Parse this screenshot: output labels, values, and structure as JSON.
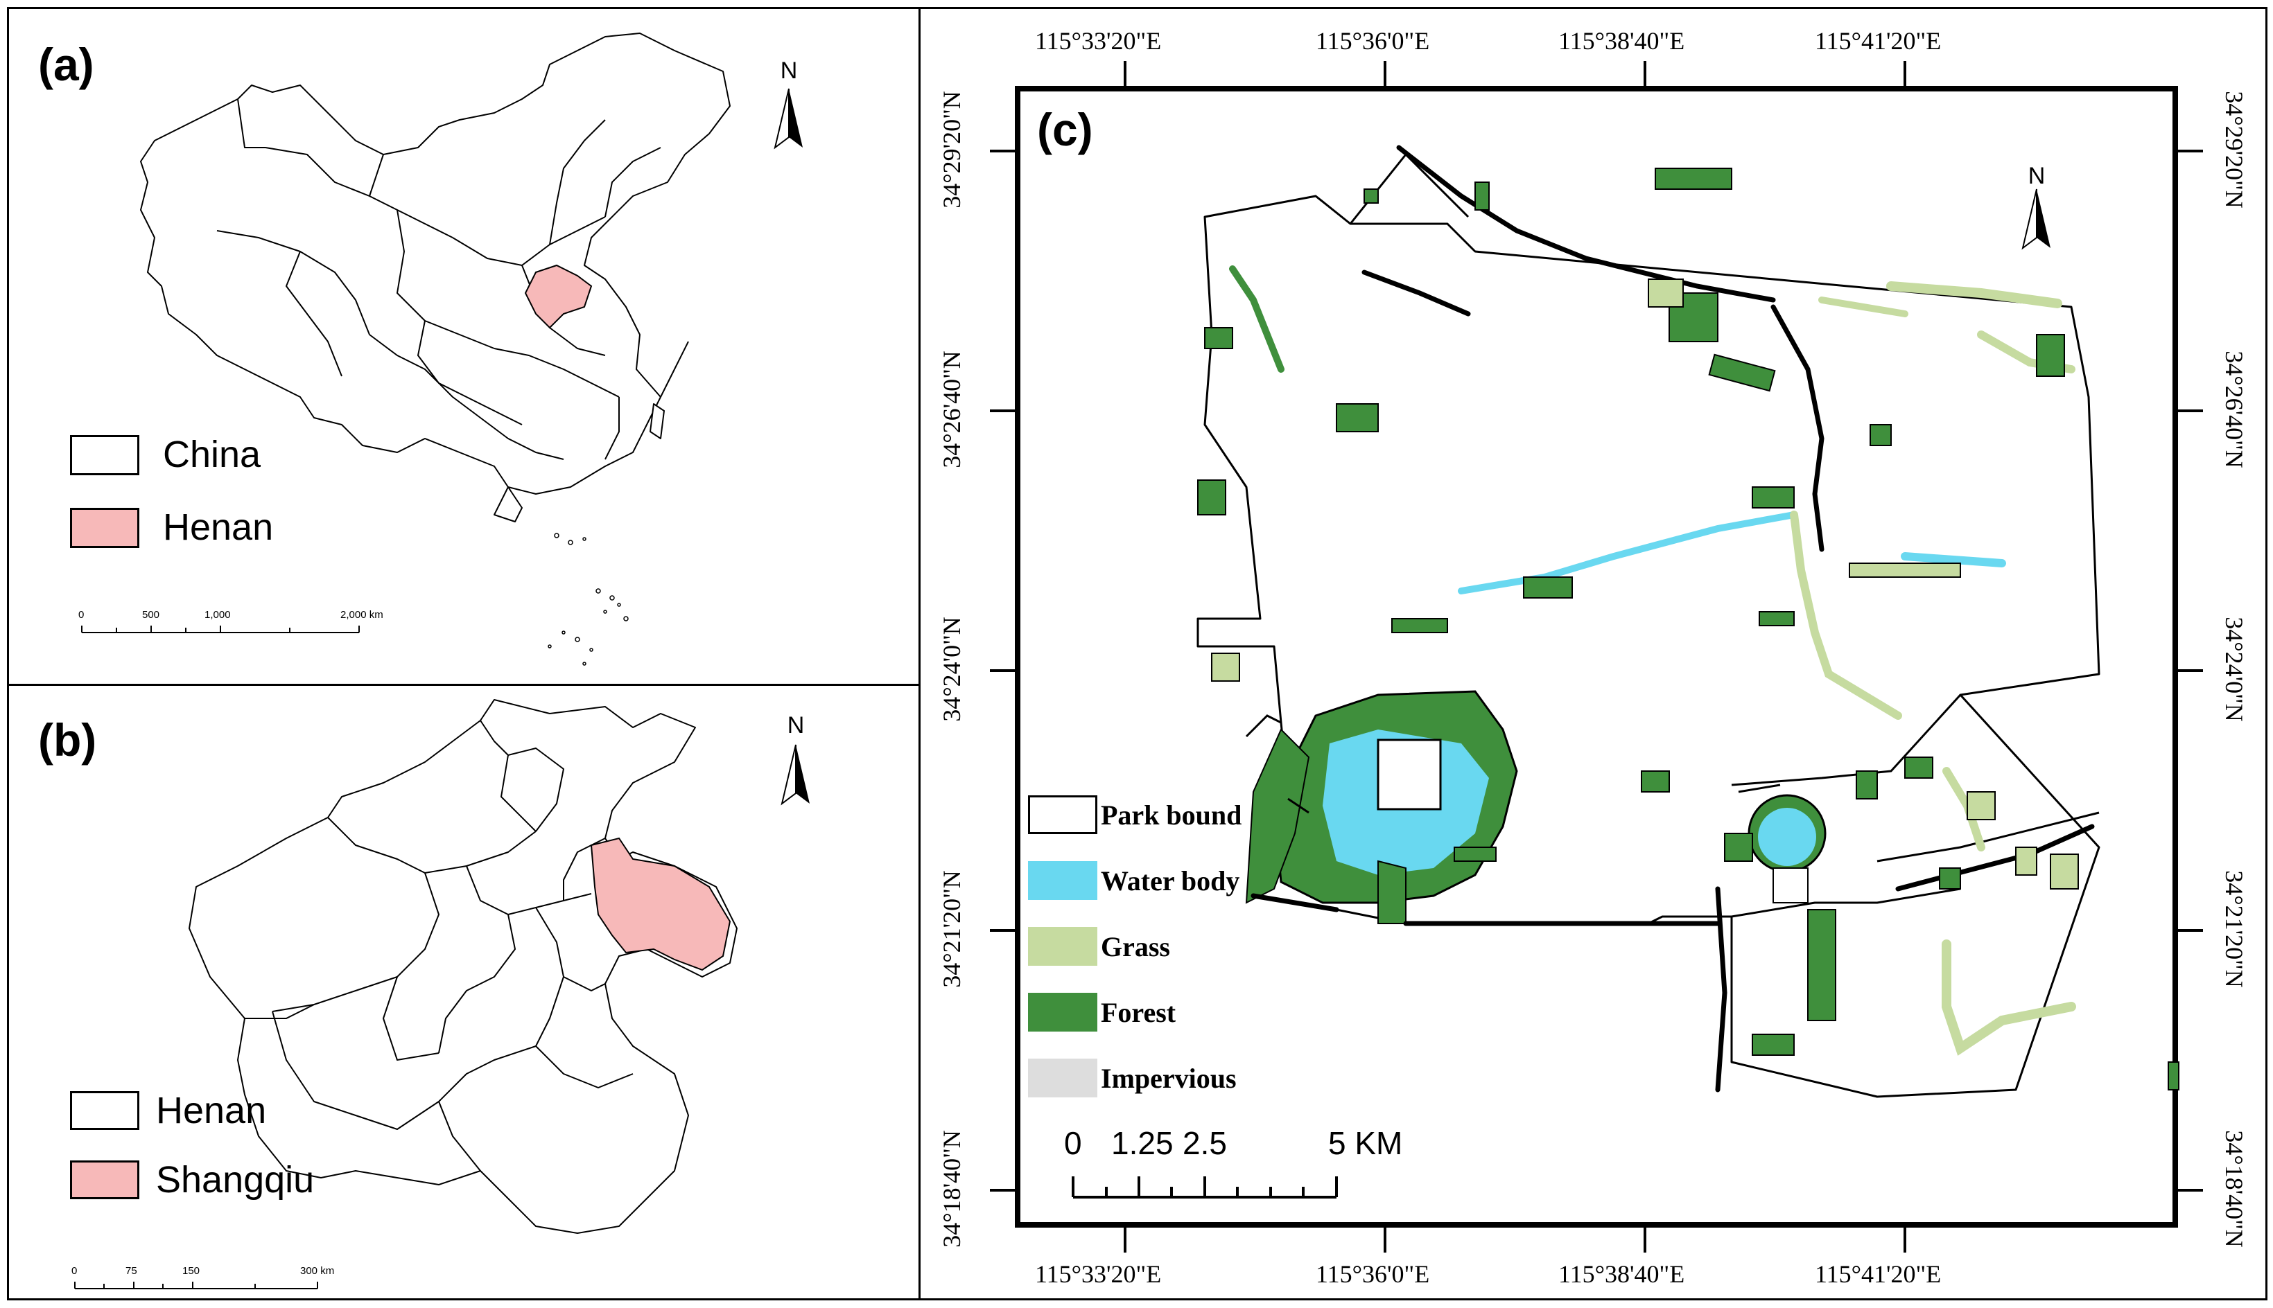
{
  "panel_a": {
    "label": "(a)",
    "north": "N",
    "legend": [
      {
        "label": "China",
        "color": "#ffffff"
      },
      {
        "label": "Henan",
        "color": "#f7b9b9"
      }
    ],
    "scale_ticks": [
      "0",
      "500",
      "1,000",
      "2,000 km"
    ]
  },
  "panel_b": {
    "label": "(b)",
    "north": "N",
    "legend": [
      {
        "label": "Henan",
        "color": "#ffffff"
      },
      {
        "label": "Shangqiu",
        "color": "#f7b9b9"
      }
    ],
    "scale_ticks": [
      "0",
      "75",
      "150",
      "300 km"
    ]
  },
  "panel_c": {
    "label": "(c)",
    "north": "N",
    "lon_labels": [
      "115°33'20\"E",
      "115°36'0\"E",
      "115°38'40\"E",
      "115°41'20\"E"
    ],
    "lat_labels": [
      "34°29'20\"N",
      "34°26'40\"N",
      "34°24'0\"N",
      "34°21'20\"N",
      "34°18'40\"N"
    ],
    "legend": [
      {
        "label": "Park bound",
        "color": "#ffffff"
      },
      {
        "label": "Water body",
        "color": "#69d8f0"
      },
      {
        "label": "Grass",
        "color": "#c6dba0"
      },
      {
        "label": "Forest",
        "color": "#3f8f3c"
      },
      {
        "label": "Impervious",
        "color": "#dddddd"
      }
    ],
    "scale_ticks": [
      "0",
      "1.25",
      "2.5",
      "5 KM"
    ]
  },
  "colors": {
    "highlight": "#f7b9b9",
    "water": "#69d8f0",
    "grass": "#c6dba0",
    "forest": "#3f8f3c",
    "impervious": "#dddddd"
  }
}
